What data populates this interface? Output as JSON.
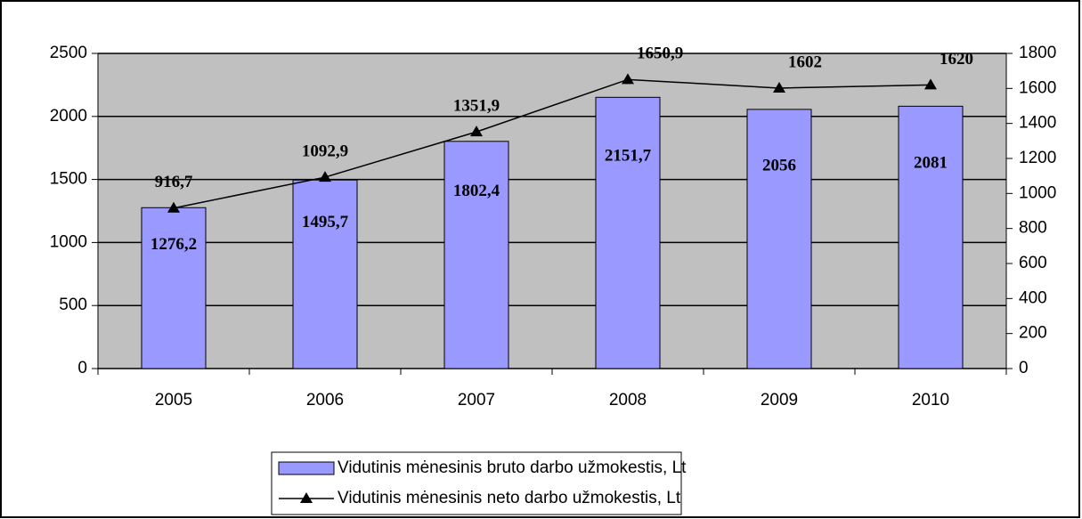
{
  "chart_data": {
    "type": "bar",
    "categories": [
      "2005",
      "2006",
      "2007",
      "2008",
      "2009",
      "2010"
    ],
    "series": [
      {
        "name": "Vidutinis mėnesinis bruto darbo užmokestis, Lt",
        "type": "bar",
        "color": "#9999ff",
        "values": [
          1276.2,
          1495.7,
          1802.4,
          2151.7,
          2056,
          2081
        ],
        "value_labels": [
          "1276,2",
          "1495,7",
          "1802,4",
          "2151,7",
          "2056",
          "2081"
        ]
      },
      {
        "name": "Vidutinis mėnesinis neto darbo užmokestis, Lt",
        "type": "line",
        "color": "#000000",
        "axis": "y2",
        "values": [
          916.7,
          1092.9,
          1351.9,
          1650.9,
          1602,
          1620
        ],
        "value_labels": [
          "916,7",
          "1092,9",
          "1351,9",
          "1650,9",
          "1602",
          "1620"
        ]
      }
    ],
    "ylim": [
      0,
      2500
    ],
    "yticks": [
      0,
      500,
      1000,
      1500,
      2000,
      2500
    ],
    "y2lim": [
      0,
      1800
    ],
    "y2ticks": [
      0,
      200,
      400,
      600,
      800,
      1000,
      1200,
      1400,
      1600,
      1800
    ],
    "grid": true,
    "legend": "bottom"
  }
}
